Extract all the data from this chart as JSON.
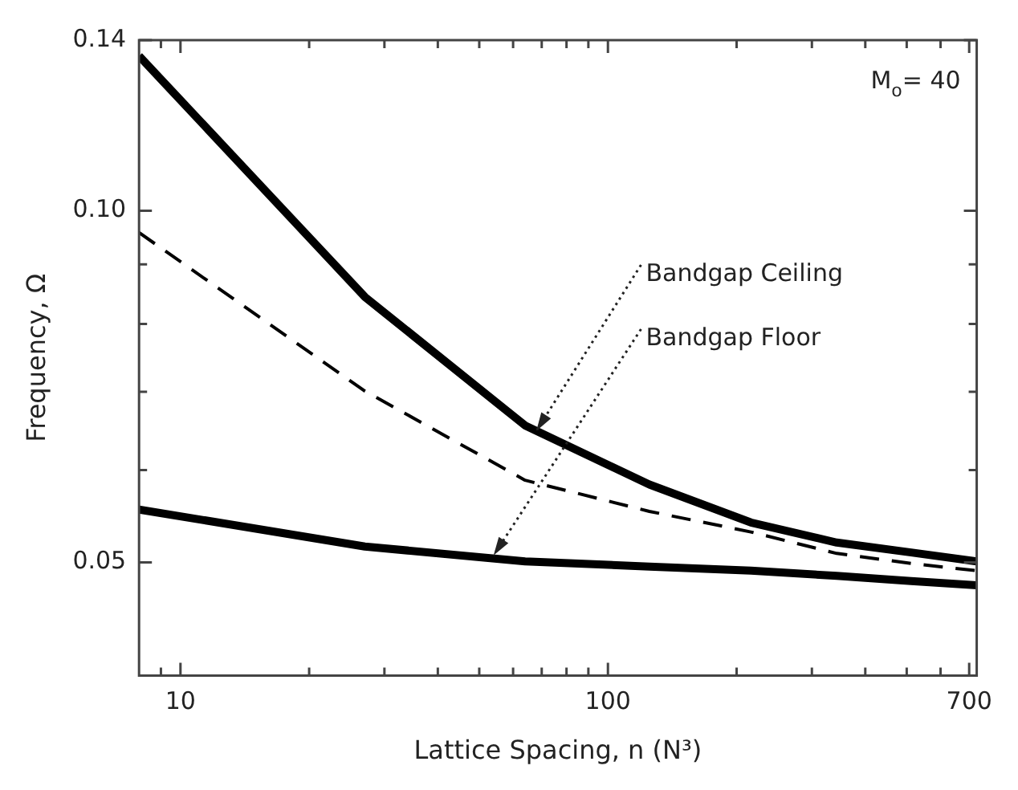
{
  "chart_data": {
    "type": "line",
    "xlabel": "Lattice Spacing, n (N³)",
    "ylabel": "Frequency, Ω",
    "log": "xy",
    "grid": false,
    "legend": false,
    "marker": "none",
    "x": [
      8,
      27,
      64,
      125,
      216,
      343,
      512,
      729
    ],
    "series": [
      {
        "color": "#000000",
        "line_style": "solid",
        "values": [
          0.1357,
          0.0844,
          0.0655,
          0.0583,
          0.0541,
          0.052,
          0.051,
          0.0501
        ]
      },
      {
        "color": "#000000",
        "line_style": "dashed",
        "values": [
          0.0958,
          0.0701,
          0.0588,
          0.0553,
          0.0531,
          0.0509,
          0.0499,
          0.0492
        ]
      },
      {
        "color": "#000000",
        "line_style": "solid",
        "values": [
          0.0555,
          0.0516,
          0.0501,
          0.0496,
          0.0492,
          0.0487,
          0.0482,
          0.0478
        ]
      }
    ],
    "xlim": [
      8,
      729
    ],
    "xticks": [
      {
        "value": 9,
        "label": null
      },
      10,
      {
        "value": 20,
        "label": null
      },
      {
        "value": 30,
        "label": null
      },
      {
        "value": 40,
        "label": null
      },
      {
        "value": 50,
        "label": null
      },
      {
        "value": 60,
        "label": null
      },
      {
        "value": 70,
        "label": null
      },
      {
        "value": 80,
        "label": null
      },
      {
        "value": 90,
        "label": null
      },
      100,
      {
        "value": 200,
        "label": null
      },
      {
        "value": 300,
        "label": null
      },
      {
        "value": 400,
        "label": null
      },
      {
        "value": 500,
        "label": null
      },
      {
        "value": 600,
        "label": null
      },
      700
    ],
    "ylim": [
      0.04,
      0.14
    ],
    "yticks": [
      0.05,
      {
        "value": 0.06,
        "label": null
      },
      {
        "value": 0.07,
        "label": null
      },
      {
        "value": 0.08,
        "label": null
      },
      {
        "value": 0.09,
        "label": null
      },
      {
        "value": 0.1,
        "label": "0.10"
      },
      0.14
    ],
    "annotations": [
      "M$_{o}$= 40",
      {
        "text": "Bandgap Ceiling",
        "x": 68,
        "y": 0.0648
      },
      {
        "text": "Bandgap Floor",
        "x": 54,
        "y": 0.0507
      }
    ]
  }
}
